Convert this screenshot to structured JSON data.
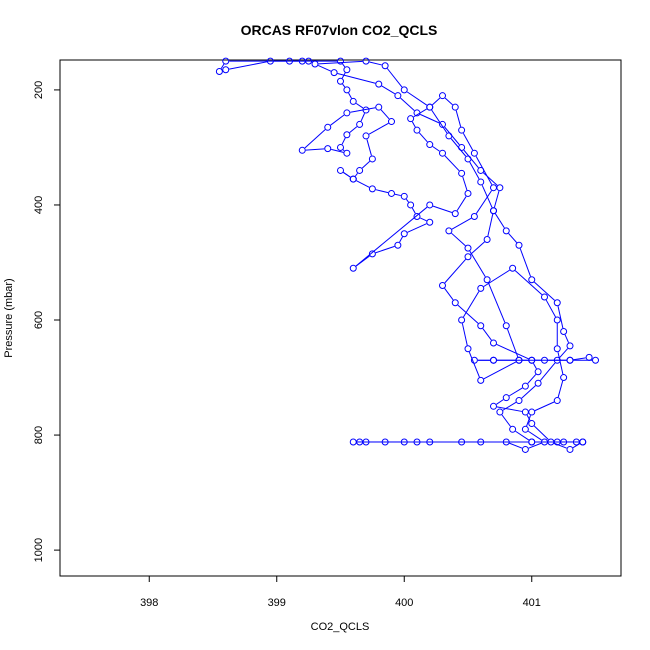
{
  "chart_data": {
    "type": "line",
    "title": "ORCAS RF07vlon CO2_QCLS",
    "xlabel": "CO2_QCLS",
    "ylabel": "Pressure (mbar)",
    "xlim": [
      397.3,
      401.7
    ],
    "ylim": [
      1045,
      148
    ],
    "y_inverted": true,
    "xticks": [
      398,
      399,
      400,
      401
    ],
    "yticks": [
      200,
      400,
      600,
      800,
      1000
    ],
    "grid": false,
    "legend": "none",
    "series": [
      {
        "color": "#0000ff",
        "marker": "open-circle",
        "points": [
          [
            399.25,
            150
          ],
          [
            399.1,
            150
          ],
          [
            398.6,
            150
          ],
          [
            398.55,
            168
          ],
          [
            398.6,
            165
          ],
          [
            398.95,
            150
          ],
          [
            399.2,
            150
          ],
          [
            399.5,
            150
          ],
          [
            399.55,
            165
          ],
          [
            399.5,
            185
          ],
          [
            399.55,
            200
          ],
          [
            399.6,
            220
          ],
          [
            399.7,
            235
          ],
          [
            399.65,
            260
          ],
          [
            399.55,
            278
          ],
          [
            399.5,
            300
          ],
          [
            399.55,
            310
          ],
          [
            399.4,
            302
          ],
          [
            399.2,
            305
          ],
          [
            399.4,
            265
          ],
          [
            399.55,
            240
          ],
          [
            399.8,
            230
          ],
          [
            399.9,
            255
          ],
          [
            399.7,
            280
          ],
          [
            399.75,
            320
          ],
          [
            399.65,
            340
          ],
          [
            399.6,
            355
          ],
          [
            399.5,
            340
          ],
          [
            399.6,
            355
          ],
          [
            399.75,
            372
          ],
          [
            399.9,
            380
          ],
          [
            400.0,
            385
          ],
          [
            400.05,
            400
          ],
          [
            400.1,
            420
          ],
          [
            400.2,
            430
          ],
          [
            400.0,
            450
          ],
          [
            399.95,
            470
          ],
          [
            399.75,
            485
          ],
          [
            399.6,
            510
          ],
          [
            400.2,
            400
          ],
          [
            400.4,
            415
          ],
          [
            400.5,
            380
          ],
          [
            400.45,
            345
          ],
          [
            400.3,
            310
          ],
          [
            400.2,
            295
          ],
          [
            400.1,
            270
          ],
          [
            400.05,
            250
          ],
          [
            400.2,
            230
          ],
          [
            400.3,
            210
          ],
          [
            400.4,
            230
          ],
          [
            400.45,
            270
          ],
          [
            400.55,
            310
          ],
          [
            400.7,
            370
          ],
          [
            400.55,
            420
          ],
          [
            400.35,
            445
          ],
          [
            400.5,
            475
          ],
          [
            400.65,
            530
          ],
          [
            400.8,
            610
          ],
          [
            400.9,
            670
          ],
          [
            400.6,
            705
          ],
          [
            400.5,
            650
          ],
          [
            400.45,
            600
          ],
          [
            400.6,
            545
          ],
          [
            400.85,
            510
          ],
          [
            401.1,
            560
          ],
          [
            401.2,
            600
          ],
          [
            401.2,
            650
          ],
          [
            401.25,
            700
          ],
          [
            401.2,
            740
          ],
          [
            401.0,
            760
          ],
          [
            400.95,
            790
          ],
          [
            401.1,
            812
          ],
          [
            400.95,
            825
          ],
          [
            400.8,
            812
          ],
          [
            400.6,
            812
          ],
          [
            400.45,
            812
          ],
          [
            400.2,
            812
          ],
          [
            400.0,
            812
          ],
          [
            399.85,
            812
          ],
          [
            399.7,
            812
          ],
          [
            399.6,
            812
          ],
          [
            399.65,
            812
          ],
          [
            400.1,
            812
          ],
          [
            401.0,
            812
          ],
          [
            401.2,
            812
          ],
          [
            401.35,
            812
          ],
          [
            401.4,
            812
          ],
          [
            401.3,
            825
          ],
          [
            401.15,
            812
          ],
          [
            401.0,
            780
          ],
          [
            400.95,
            760
          ],
          [
            400.7,
            750
          ],
          [
            400.8,
            735
          ],
          [
            400.95,
            715
          ],
          [
            401.05,
            690
          ],
          [
            401.0,
            670
          ],
          [
            400.9,
            670
          ],
          [
            400.7,
            670
          ],
          [
            400.55,
            670
          ],
          [
            400.7,
            670
          ],
          [
            401.1,
            670
          ],
          [
            401.3,
            670
          ],
          [
            401.45,
            665
          ],
          [
            401.5,
            670
          ],
          [
            401.3,
            670
          ],
          [
            401.0,
            670
          ],
          [
            400.7,
            640
          ],
          [
            400.6,
            610
          ],
          [
            400.4,
            570
          ],
          [
            400.3,
            540
          ],
          [
            400.5,
            490
          ],
          [
            400.65,
            460
          ],
          [
            400.7,
            410
          ],
          [
            400.75,
            370
          ],
          [
            400.6,
            340
          ],
          [
            400.45,
            300
          ],
          [
            400.3,
            260
          ],
          [
            400.1,
            240
          ],
          [
            399.95,
            210
          ],
          [
            399.8,
            190
          ],
          [
            399.45,
            170
          ],
          [
            399.3,
            155
          ],
          [
            399.7,
            150
          ],
          [
            399.85,
            158
          ],
          [
            400.0,
            200
          ],
          [
            400.2,
            230
          ],
          [
            400.35,
            280
          ],
          [
            400.5,
            320
          ],
          [
            400.6,
            360
          ],
          [
            400.7,
            410
          ],
          [
            400.8,
            445
          ],
          [
            400.9,
            470
          ],
          [
            401.0,
            530
          ],
          [
            401.2,
            570
          ],
          [
            401.25,
            620
          ],
          [
            401.3,
            645
          ],
          [
            401.2,
            670
          ],
          [
            401.05,
            710
          ],
          [
            400.9,
            740
          ],
          [
            400.75,
            760
          ],
          [
            400.85,
            790
          ],
          [
            401.0,
            812
          ],
          [
            401.25,
            812
          ],
          [
            401.4,
            812
          ]
        ]
      }
    ]
  }
}
